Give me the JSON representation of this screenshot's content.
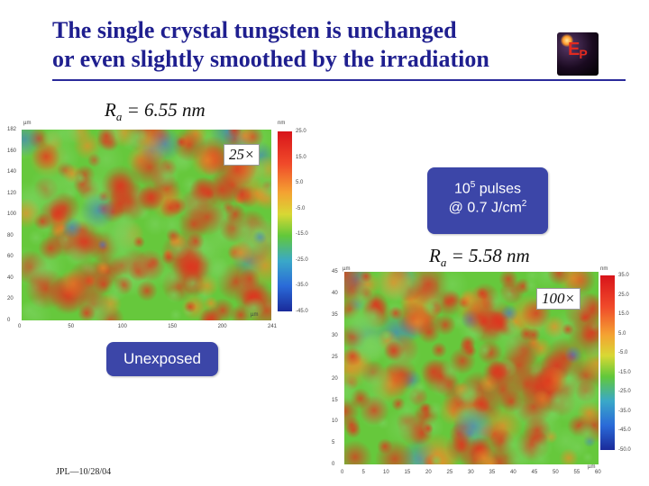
{
  "title": {
    "line1": "The single crystal tungsten is unchanged",
    "line2": "or even slightly smoothed by the irradiation"
  },
  "logo": {
    "text": "EP",
    "icon": "lab-logo"
  },
  "image1": {
    "ra_label": "R",
    "ra_sub": "a",
    "ra_value": " = 6.55 nm",
    "magnification": "25×",
    "x_ticks": [
      "0",
      "50",
      "100",
      "150",
      "200",
      "241"
    ],
    "y_ticks": [
      "0",
      "20",
      "40",
      "60",
      "80",
      "100",
      "120",
      "140",
      "160",
      "182"
    ],
    "x_unit": "µm",
    "y_unit": "µm",
    "colorbar_unit": "nm",
    "colorbar_ticks": [
      "25.0",
      "15.0",
      "5.0",
      "-5.0",
      "-15.0",
      "-25.0",
      "-35.0",
      "-45.0"
    ],
    "callout": "Unexposed"
  },
  "image2": {
    "ra_label": "R",
    "ra_sub": "a",
    "ra_value": " = 5.58 nm",
    "magnification": "100×",
    "x_ticks": [
      "0",
      "5",
      "10",
      "15",
      "20",
      "25",
      "30",
      "35",
      "40",
      "45",
      "50",
      "55",
      "60"
    ],
    "y_ticks": [
      "0",
      "5",
      "10",
      "15",
      "20",
      "25",
      "30",
      "35",
      "40",
      "45"
    ],
    "x_unit": "µm",
    "y_unit": "µm",
    "colorbar_unit": "nm",
    "colorbar_ticks": [
      "35.0",
      "25.0",
      "15.0",
      "5.0",
      "-5.0",
      "-15.0",
      "-25.0",
      "-35.0",
      "-45.0",
      "-50.0"
    ],
    "callout_base": "10",
    "callout_exp": "5",
    "callout_rest": " pulses",
    "callout_line2": "@ 0.7 J/cm",
    "callout_line2_exp": "2"
  },
  "footer": "JPL—10/28/04",
  "colors": {
    "title": "#1f1f8f",
    "callout_bg": "#3c46a8",
    "map_green": "#66c83c",
    "map_red": "#e0321e",
    "map_blue": "#2a6ad8"
  }
}
